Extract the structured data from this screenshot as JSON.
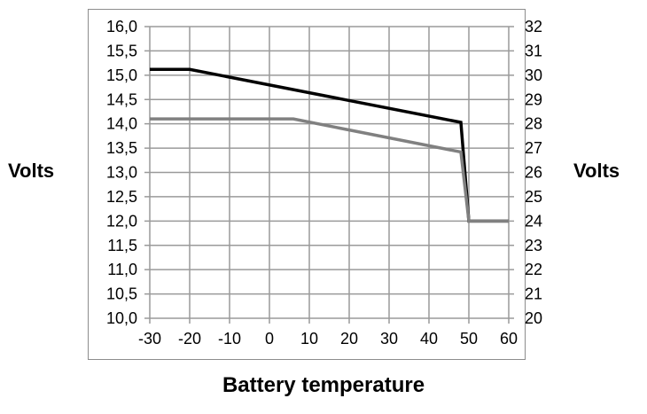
{
  "chart_data": {
    "type": "line",
    "xlabel": "Battery temperature",
    "ylabel": "Volts",
    "ylabel_right": "Volts",
    "xlim": [
      -30,
      60
    ],
    "ylim": [
      10.0,
      16.0
    ],
    "ylim_right": [
      20,
      32
    ],
    "grid": true,
    "x_ticks": [
      "-30",
      "-20",
      "-10",
      "0",
      "10",
      "20",
      "30",
      "40",
      "50",
      "60"
    ],
    "y_ticks": [
      "10,0",
      "10,5",
      "11,0",
      "11,5",
      "12,0",
      "12,5",
      "13,0",
      "13,5",
      "14,0",
      "14,5",
      "15,0",
      "15,5",
      "16,0"
    ],
    "y_ticks_right": [
      "20",
      "21",
      "22",
      "23",
      "24",
      "25",
      "26",
      "27",
      "28",
      "29",
      "30",
      "31",
      "32"
    ],
    "series": [
      {
        "color": "#000000",
        "x": [
          -30,
          -20,
          48,
          50,
          60
        ],
        "y": [
          15.12,
          15.12,
          14.03,
          12.0,
          12.0
        ]
      },
      {
        "color": "#808080",
        "x": [
          -30,
          6,
          48,
          50,
          60
        ],
        "y": [
          14.1,
          14.1,
          13.42,
          12.0,
          12.0
        ]
      }
    ]
  }
}
